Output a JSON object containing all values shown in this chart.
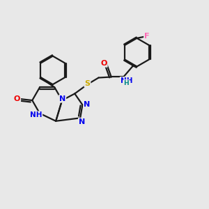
{
  "background_color": "#e8e8e8",
  "bond_color": "#1a1a1a",
  "atom_colors": {
    "N": "#0000ee",
    "O": "#ee0000",
    "S": "#ccaa00",
    "F": "#ff69b4",
    "H": "#008888"
  },
  "lw": 1.6
}
